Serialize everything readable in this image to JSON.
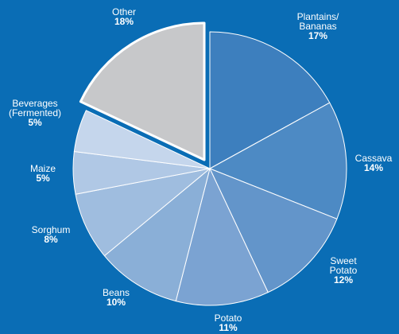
{
  "chart_data": {
    "type": "pie",
    "slices": [
      {
        "label": "Plantains/ Bananas",
        "label_lines": [
          "Plantains/",
          "Bananas"
        ],
        "value": 17,
        "value_label": "17%",
        "color": "#3d7fbe"
      },
      {
        "label": "Cassava",
        "label_lines": [
          "Cassava"
        ],
        "value": 14,
        "value_label": "14%",
        "color": "#4d8ac4"
      },
      {
        "label": "Sweet Potato",
        "label_lines": [
          "Sweet",
          "Potato"
        ],
        "value": 12,
        "value_label": "12%",
        "color": "#6395ca"
      },
      {
        "label": "Potato",
        "label_lines": [
          "Potato"
        ],
        "value": 11,
        "value_label": "11%",
        "color": "#7ba3d2"
      },
      {
        "label": "Beans",
        "label_lines": [
          "Beans"
        ],
        "value": 10,
        "value_label": "10%",
        "color": "#8aafd7"
      },
      {
        "label": "Sorghum",
        "label_lines": [
          "Sorghum"
        ],
        "value": 8,
        "value_label": "8%",
        "color": "#9fbddf"
      },
      {
        "label": "Maize",
        "label_lines": [
          "Maize"
        ],
        "value": 5,
        "value_label": "5%",
        "color": "#b0c8e5"
      },
      {
        "label": "Beverages (Fermented)",
        "label_lines": [
          "Beverages",
          "(Fermented)"
        ],
        "value": 5,
        "value_label": "5%",
        "color": "#c5d6ec"
      },
      {
        "label": "Other",
        "label_lines": [
          "Other"
        ],
        "value": 18,
        "value_label": "18%",
        "color": "#c7c8ca",
        "exploded": true
      }
    ],
    "start": "12 o'clock",
    "direction": "clockwise",
    "slice_border_color": "#ffffff",
    "legend": "none"
  }
}
